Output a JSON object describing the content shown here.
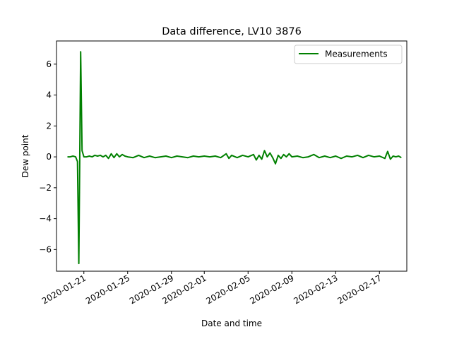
{
  "chart_data": {
    "type": "line",
    "title": "Data difference, LV10 3876",
    "xlabel": "Date and time",
    "ylabel": "Dew point",
    "x_axis_type": "date",
    "xlim": [
      "2020-01-18T12:00",
      "2020-02-19T12:00"
    ],
    "ylim": [
      -7.4,
      7.5
    ],
    "yticks": [
      -6,
      -4,
      -2,
      0,
      2,
      4,
      6
    ],
    "xticks": [
      "2020-01-21",
      "2020-01-25",
      "2020-01-29",
      "2020-02-01",
      "2020-02-05",
      "2020-02-09",
      "2020-02-13",
      "2020-02-17"
    ],
    "grid": false,
    "legend": {
      "position": "top-right",
      "entries": [
        "Measurements"
      ]
    },
    "series": [
      {
        "name": "Measurements",
        "color": "#008000",
        "points": [
          [
            "2020-01-19T12:00",
            0.0
          ],
          [
            "2020-01-19T18:00",
            0.0
          ],
          [
            "2020-01-20T00:00",
            0.05
          ],
          [
            "2020-01-20T06:00",
            0.0
          ],
          [
            "2020-01-20T10:00",
            -0.3
          ],
          [
            "2020-01-20T13:00",
            -6.9
          ],
          [
            "2020-01-20T15:00",
            -0.2
          ],
          [
            "2020-01-20T17:00",
            6.8
          ],
          [
            "2020-01-20T20:00",
            0.4
          ],
          [
            "2020-01-21T00:00",
            0.0
          ],
          [
            "2020-01-21T06:00",
            0.0
          ],
          [
            "2020-01-21T12:00",
            0.05
          ],
          [
            "2020-01-21T18:00",
            0.0
          ],
          [
            "2020-01-22T00:00",
            0.1
          ],
          [
            "2020-01-22T06:00",
            0.05
          ],
          [
            "2020-01-22T12:00",
            0.1
          ],
          [
            "2020-01-22T18:00",
            0.0
          ],
          [
            "2020-01-23T00:00",
            0.1
          ],
          [
            "2020-01-23T06:00",
            -0.1
          ],
          [
            "2020-01-23T12:00",
            0.2
          ],
          [
            "2020-01-23T18:00",
            -0.05
          ],
          [
            "2020-01-24T00:00",
            0.2
          ],
          [
            "2020-01-24T06:00",
            0.0
          ],
          [
            "2020-01-24T12:00",
            0.15
          ],
          [
            "2020-01-24T18:00",
            0.05
          ],
          [
            "2020-01-25T00:00",
            0.0
          ],
          [
            "2020-01-25T12:00",
            -0.05
          ],
          [
            "2020-01-26T00:00",
            0.1
          ],
          [
            "2020-01-26T12:00",
            -0.05
          ],
          [
            "2020-01-27T00:00",
            0.05
          ],
          [
            "2020-01-27T12:00",
            -0.05
          ],
          [
            "2020-01-28T00:00",
            0.0
          ],
          [
            "2020-01-28T12:00",
            0.05
          ],
          [
            "2020-01-29T00:00",
            -0.05
          ],
          [
            "2020-01-29T12:00",
            0.05
          ],
          [
            "2020-01-30T00:00",
            0.0
          ],
          [
            "2020-01-30T12:00",
            -0.05
          ],
          [
            "2020-01-31T00:00",
            0.05
          ],
          [
            "2020-01-31T12:00",
            0.0
          ],
          [
            "2020-02-01T00:00",
            0.05
          ],
          [
            "2020-02-01T12:00",
            0.0
          ],
          [
            "2020-02-02T00:00",
            0.05
          ],
          [
            "2020-02-02T12:00",
            -0.05
          ],
          [
            "2020-02-03T00:00",
            0.2
          ],
          [
            "2020-02-03T06:00",
            -0.1
          ],
          [
            "2020-02-03T12:00",
            0.1
          ],
          [
            "2020-02-04T00:00",
            -0.05
          ],
          [
            "2020-02-04T12:00",
            0.1
          ],
          [
            "2020-02-05T00:00",
            0.0
          ],
          [
            "2020-02-05T12:00",
            0.15
          ],
          [
            "2020-02-05T18:00",
            -0.2
          ],
          [
            "2020-02-06T00:00",
            0.1
          ],
          [
            "2020-02-06T06:00",
            -0.15
          ],
          [
            "2020-02-06T12:00",
            0.4
          ],
          [
            "2020-02-06T18:00",
            0.0
          ],
          [
            "2020-02-07T00:00",
            0.25
          ],
          [
            "2020-02-07T06:00",
            -0.05
          ],
          [
            "2020-02-07T12:00",
            -0.45
          ],
          [
            "2020-02-07T18:00",
            0.1
          ],
          [
            "2020-02-08T00:00",
            -0.1
          ],
          [
            "2020-02-08T06:00",
            0.15
          ],
          [
            "2020-02-08T12:00",
            0.0
          ],
          [
            "2020-02-08T18:00",
            0.2
          ],
          [
            "2020-02-09T00:00",
            0.0
          ],
          [
            "2020-02-09T12:00",
            0.05
          ],
          [
            "2020-02-10T00:00",
            -0.05
          ],
          [
            "2020-02-10T12:00",
            0.0
          ],
          [
            "2020-02-11T00:00",
            0.15
          ],
          [
            "2020-02-11T12:00",
            -0.05
          ],
          [
            "2020-02-12T00:00",
            0.05
          ],
          [
            "2020-02-12T12:00",
            -0.05
          ],
          [
            "2020-02-13T00:00",
            0.05
          ],
          [
            "2020-02-13T12:00",
            -0.1
          ],
          [
            "2020-02-14T00:00",
            0.05
          ],
          [
            "2020-02-14T12:00",
            0.0
          ],
          [
            "2020-02-15T00:00",
            0.1
          ],
          [
            "2020-02-15T12:00",
            -0.05
          ],
          [
            "2020-02-16T00:00",
            0.1
          ],
          [
            "2020-02-16T12:00",
            0.0
          ],
          [
            "2020-02-17T00:00",
            0.05
          ],
          [
            "2020-02-17T12:00",
            -0.1
          ],
          [
            "2020-02-17T18:00",
            0.35
          ],
          [
            "2020-02-18T00:00",
            -0.15
          ],
          [
            "2020-02-18T06:00",
            0.05
          ],
          [
            "2020-02-18T12:00",
            0.0
          ],
          [
            "2020-02-18T18:00",
            0.05
          ],
          [
            "2020-02-19T00:00",
            -0.05
          ]
        ]
      }
    ]
  }
}
